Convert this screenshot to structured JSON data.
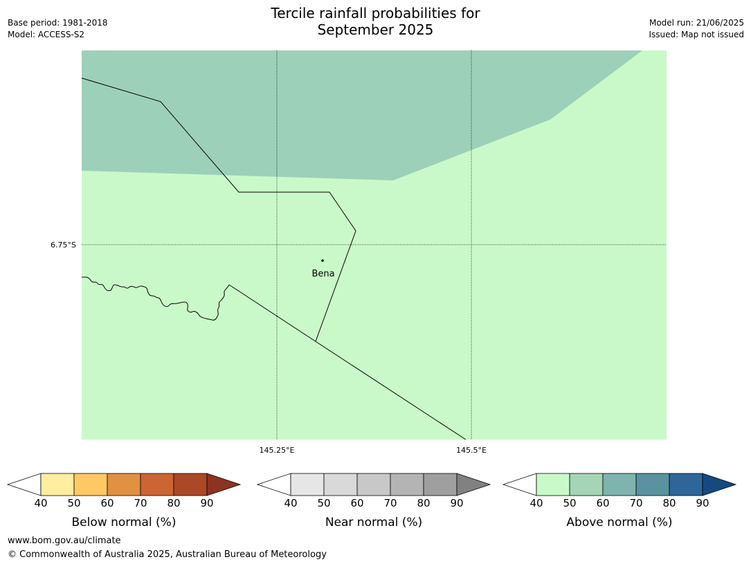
{
  "title": {
    "line1": "Tercile rainfall probabilities for",
    "line2": "September 2025"
  },
  "meta_left": {
    "base_period": "Base period: 1981-2018",
    "model": "Model: ACCESS-S2"
  },
  "meta_right": {
    "model_run": "Model run: 21/06/2025",
    "issued": "Issued: Map not issued"
  },
  "map": {
    "lat_label": "6.75°S",
    "lon_labels": [
      "145.25°E",
      "145.5°E"
    ],
    "place_name": "Bena",
    "colors": {
      "above_40_50": "#caf9c9",
      "above_50_60": "#9dd0b9",
      "border": "#000000",
      "gridline": "#000000"
    }
  },
  "colorbars": [
    {
      "label": "Below normal (%)",
      "ticks": [
        "40",
        "50",
        "60",
        "70",
        "80",
        "90"
      ],
      "colors": [
        "#ffffff",
        "#ffeda0",
        "#fec965",
        "#e09142",
        "#cc6534",
        "#ab4828",
        "#8d3420"
      ]
    },
    {
      "label": "Near normal (%)",
      "ticks": [
        "40",
        "50",
        "60",
        "70",
        "80",
        "90"
      ],
      "colors": [
        "#ffffff",
        "#e6e6e6",
        "#d9d9d9",
        "#c8c8c8",
        "#b4b4b4",
        "#9f9f9f",
        "#818181"
      ]
    },
    {
      "label": "Above normal (%)",
      "ticks": [
        "40",
        "50",
        "60",
        "70",
        "80",
        "90"
      ],
      "colors": [
        "#ffffff",
        "#caf9c9",
        "#a3d5b6",
        "#7fb4ae",
        "#5a92a0",
        "#2f6698",
        "#154a80"
      ]
    }
  ],
  "footer": {
    "url": "www.bom.gov.au/climate",
    "copyright": "© Commonwealth of Australia 2025, Australian Bureau of Meteorology"
  }
}
